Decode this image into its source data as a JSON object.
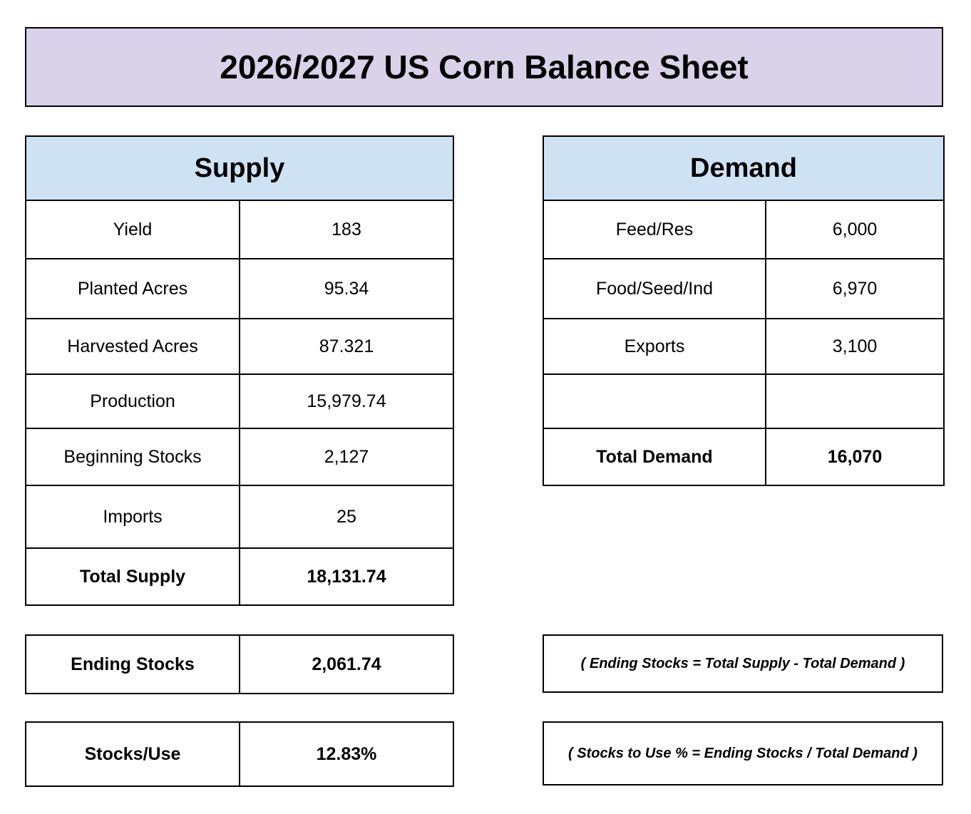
{
  "title": "2026/2027 US Corn Balance Sheet",
  "supply": {
    "header": "Supply",
    "rows": [
      {
        "label": "Yield",
        "value": "183"
      },
      {
        "label": "Planted Acres",
        "value": "95.34"
      },
      {
        "label": "Harvested Acres",
        "value": "87.321"
      },
      {
        "label": "Production",
        "value": "15,979.74"
      },
      {
        "label": "Beginning Stocks",
        "value": "2,127"
      },
      {
        "label": "Imports",
        "value": "25"
      }
    ],
    "total": {
      "label": "Total Supply",
      "value": "18,131.74"
    }
  },
  "demand": {
    "header": "Demand",
    "rows": [
      {
        "label": "Feed/Res",
        "value": "6,000"
      },
      {
        "label": "Food/Seed/Ind",
        "value": "6,970"
      },
      {
        "label": "Exports",
        "value": "3,100"
      },
      {
        "label": "",
        "value": ""
      }
    ],
    "total": {
      "label": "Total Demand",
      "value": "16,070"
    }
  },
  "ending_stocks": {
    "label": "Ending Stocks",
    "value": "2,061.74",
    "formula": "( Ending Stocks = Total Supply - Total Demand )"
  },
  "stocks_use": {
    "label": "Stocks/Use",
    "value": "12.83%",
    "formula": "( Stocks to Use % = Ending Stocks / Total Demand )"
  }
}
